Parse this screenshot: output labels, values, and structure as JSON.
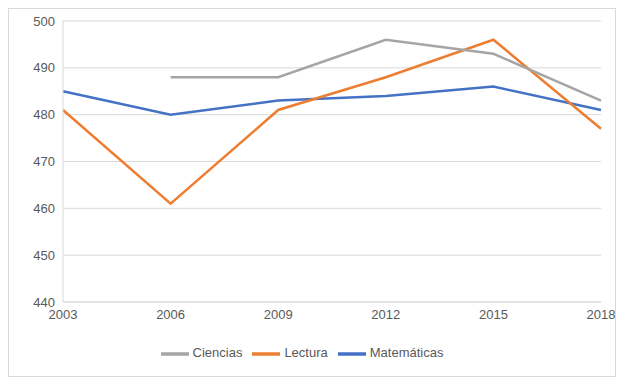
{
  "chart_data": {
    "type": "line",
    "categories": [
      "2003",
      "2006",
      "2009",
      "2012",
      "2015",
      "2018"
    ],
    "series": [
      {
        "name": "Matemáticas",
        "color": "#4472c4",
        "values": [
          485,
          480,
          483,
          484,
          486,
          481
        ]
      },
      {
        "name": "Lectura",
        "color": "#ed7d31",
        "values": [
          481,
          461,
          481,
          488,
          496,
          477
        ]
      },
      {
        "name": "Ciencias",
        "color": "#a5a5a5",
        "values": [
          null,
          488,
          488,
          496,
          493,
          483
        ]
      }
    ],
    "ylim": [
      440,
      500
    ],
    "yticks": [
      440,
      450,
      460,
      470,
      480,
      490,
      500
    ],
    "grid": true,
    "legend": "bottom"
  }
}
